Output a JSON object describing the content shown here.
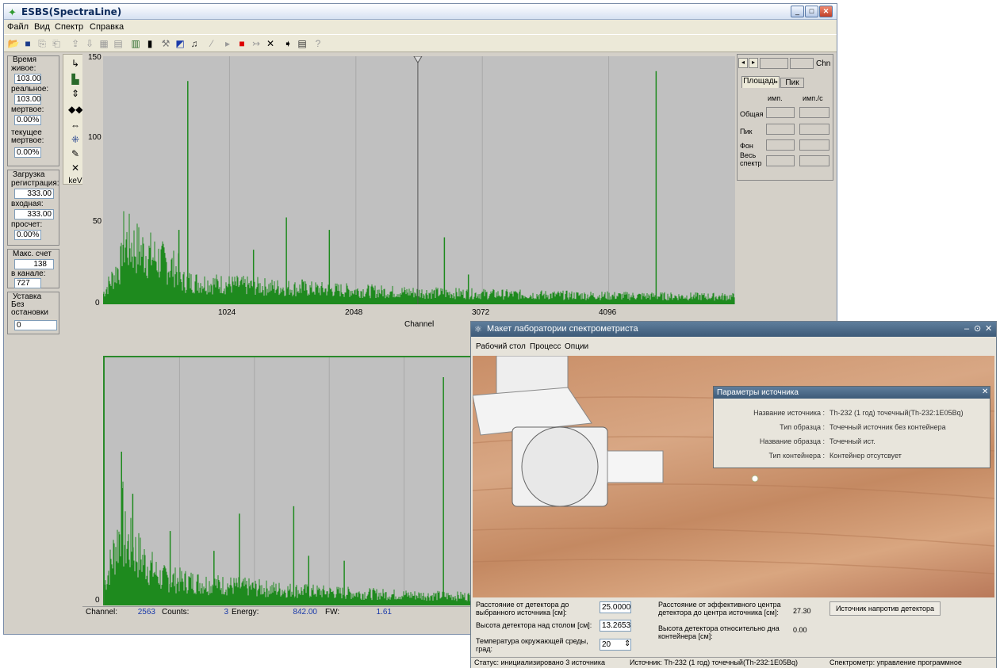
{
  "main_window": {
    "title": "ESBS(SpectraLine)",
    "menu": [
      "Файл",
      "Вид",
      "Спектр",
      "Справка"
    ],
    "left_panel": {
      "time_group": "Время",
      "live_label": "живое:",
      "live_value": "103.00",
      "real_label": "реальное:",
      "real_value": "103.00",
      "dead_label": "мертвое:",
      "dead_value": "0.00%",
      "current_dead_label1": "текущее",
      "current_dead_label2": "мертвое:",
      "current_dead_value": "0.00%",
      "load_group": "Загрузка",
      "reg_label": "регистрация:",
      "reg_value": "333.00",
      "input_label": "входная:",
      "input_value": "333.00",
      "miss_label": "просчет:",
      "miss_value": "0.00%",
      "max_group": "Макс. счет",
      "max_value": "138",
      "in_channel_label": "в канале:",
      "in_channel_value": "727",
      "setpoint_group": "Уставка",
      "no_stop1": "Без",
      "no_stop2": "остановки",
      "setpoint_value": "0"
    },
    "kev_label": "keV",
    "top_plot": {
      "y_ticks": [
        "150",
        "100",
        "50",
        "0"
      ],
      "x_ticks": [
        "1024",
        "2048",
        "3072",
        "4096"
      ],
      "x_label": "Channel"
    },
    "bottom_plot": {
      "y_tick0": "0"
    },
    "right_panel": {
      "chn": "Chn",
      "tab_area": "Площадь",
      "tab_peak": "Пик",
      "col_imp": "имп.",
      "col_imps": "имп./с",
      "row_total": "Общая",
      "row_peak": "Пик",
      "row_bg": "Фон",
      "row_all1": "Весь",
      "row_all2": "спектр"
    },
    "status": {
      "channel_label": "Channel:",
      "channel_value": "2563",
      "counts_label": "Counts:",
      "counts_value": "3",
      "energy_label": "Energy:",
      "energy_value": "842.00",
      "fw_label": "FW:",
      "fw_value": "1.61"
    }
  },
  "lab_window": {
    "title": "Макет лаборатории спектрометриста",
    "menu": [
      "Рабочий стол",
      "Процесс",
      "Опции"
    ],
    "params_panel": {
      "title": "Параметры источника",
      "rows": [
        {
          "label": "Название источника :",
          "value": "Th-232 (1 год) точечный(Th-232:1E05Bq)"
        },
        {
          "label": "Тип образца :",
          "value": "Точечный источник без контейнера"
        },
        {
          "label": "Название образца :",
          "value": "Точечный ист."
        },
        {
          "label": "Тип контейнера :",
          "value": "Контейнер отсутсвует"
        }
      ]
    },
    "bottom": {
      "dist_label": "Расстояние от детектора до выбранного источника [см]:",
      "dist_value": "25.0000",
      "height_label": "Высота детектора над столом [см]:",
      "height_value": "13.2653",
      "temp_label": "Температура окружающей среды, град:",
      "temp_value": "20",
      "eff_label": "Расстояние от эффективного центра детектора до центра источника [см]:",
      "eff_value": "27.30",
      "rel_label": "Высота детектора относительно дна контейнера [см]:",
      "rel_value": "0.00",
      "button": "Источник напротив детектора"
    },
    "status": {
      "status": "Статус: инициализировано 3 источника",
      "source": "Источник: Th-232 (1 год) точечный(Th-232:1E05Bq)",
      "spectrometer": "Спектрометр: управление программное"
    }
  }
}
